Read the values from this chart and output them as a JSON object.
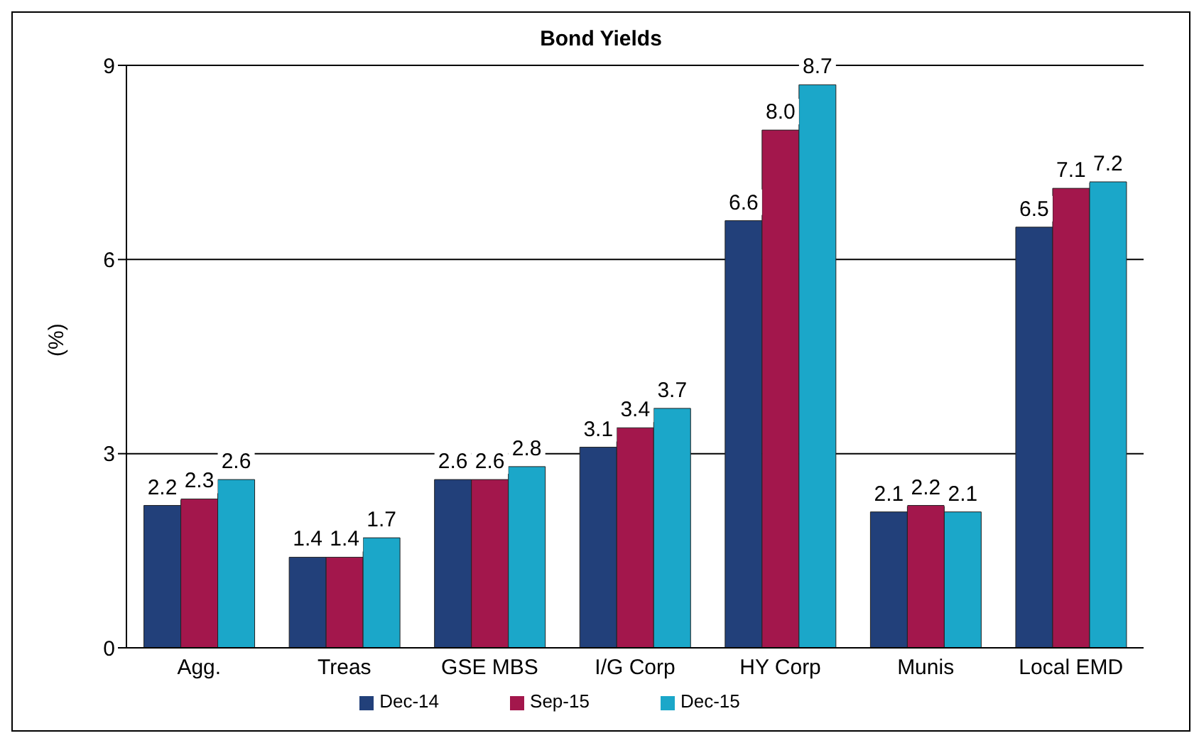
{
  "chart_data": {
    "type": "bar",
    "title": "Bond Yields",
    "ylabel": "(%)",
    "categories": [
      "Agg.",
      "Treas",
      "GSE MBS",
      "I/G Corp",
      "HY Corp",
      "Munis",
      "Local EMD"
    ],
    "series": [
      {
        "name": "Dec-14",
        "color": "#22407a",
        "values": [
          2.2,
          1.4,
          2.6,
          3.1,
          6.6,
          2.1,
          6.5
        ],
        "value_labels": [
          "2.2",
          "1.4",
          "2.6",
          "3.1",
          "6.6",
          "2.1",
          "6.5"
        ]
      },
      {
        "name": "Sep-15",
        "color": "#a3174c",
        "values": [
          2.3,
          1.4,
          2.6,
          3.4,
          8.0,
          2.2,
          7.1
        ],
        "value_labels": [
          "2.3",
          "1.4",
          "2.6",
          "3.4",
          "8.0",
          "2.2",
          "7.1"
        ]
      },
      {
        "name": "Dec-15",
        "color": "#1ba7c9",
        "values": [
          2.6,
          1.7,
          2.8,
          3.7,
          8.7,
          2.1,
          7.2
        ],
        "value_labels": [
          "2.6",
          "1.7",
          "2.8",
          "3.7",
          "8.7",
          "2.1",
          "7.2"
        ]
      }
    ],
    "ylim": [
      0,
      9
    ],
    "yticks": [
      0,
      3,
      6,
      9
    ],
    "grid": "y",
    "legend": "bottom"
  }
}
